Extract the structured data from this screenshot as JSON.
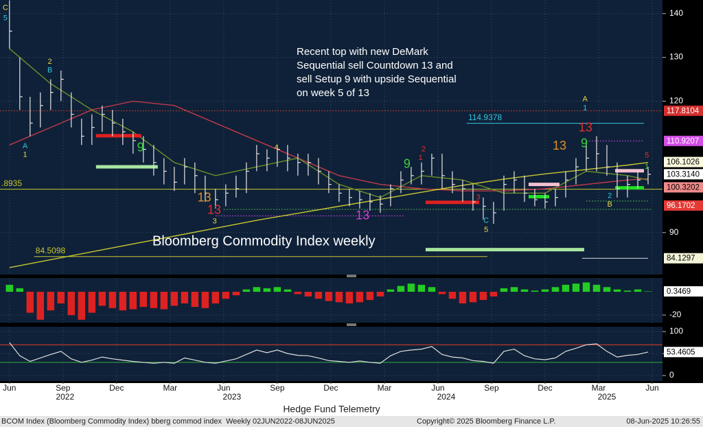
{
  "chart_data": [
    {
      "type": "ohlc",
      "title": "Bloomberg Commodity Index weekly",
      "note": [
        "Recent top with new DeMark",
        "Sequential sell Countdown 13 and",
        "sell Setup 9 with upside Sequential",
        "on week 5 of 13"
      ],
      "xlim": [
        -2.3,
        158.5
      ],
      "ylim": [
        80.4,
        143.1
      ],
      "yticks": [
        90,
        120,
        130,
        140
      ],
      "grid": true,
      "x": [
        0,
        2.5,
        5,
        7.5,
        10,
        12.5,
        15,
        17.5,
        20,
        22.5,
        25,
        27.5,
        30,
        32.5,
        35,
        37.5,
        40,
        42.5,
        45,
        47.5,
        50,
        52.5,
        55,
        57.5,
        60,
        62.5,
        65,
        67.5,
        70,
        72.5,
        75,
        77.5,
        80,
        82.5,
        85,
        87.5,
        90,
        92.5,
        95,
        97.5,
        100,
        102.5,
        105,
        107.5,
        110,
        112.5,
        115,
        117.5,
        120,
        122.5,
        125,
        127.5,
        130,
        132.5,
        135,
        137.5,
        140,
        142.5,
        145,
        147.5,
        150,
        152.5,
        155
      ],
      "ohlc": {
        "color": "#e6e6e6",
        "high": [
          143,
          130,
          121,
          122,
          125,
          127,
          122,
          116,
          117,
          119,
          118,
          116,
          113,
          112,
          110,
          107,
          105,
          107,
          106,
          103,
          100,
          101,
          103,
          106,
          110,
          109,
          110,
          110,
          108,
          108,
          107,
          104,
          101,
          100,
          99.5,
          99,
          98.5,
          101,
          104,
          105,
          106,
          108,
          108,
          104,
          102,
          101,
          98,
          97,
          103,
          104,
          103,
          100,
          99,
          100,
          104,
          107,
          111,
          112,
          110,
          106,
          103,
          104,
          105
        ],
        "low": [
          132,
          118,
          112,
          114,
          118,
          120,
          114,
          110,
          110,
          113,
          112,
          110,
          108,
          106,
          103,
          101,
          99.5,
          101,
          99,
          97,
          95.5,
          96,
          98,
          99,
          104,
          104,
          105,
          104,
          103,
          103,
          101,
          99,
          97,
          96,
          95.5,
          95,
          94.5,
          96,
          99,
          101,
          101,
          103,
          100,
          99,
          97,
          95,
          93,
          92,
          95,
          99,
          97,
          96,
          95.5,
          96,
          98,
          101,
          104,
          104,
          103,
          98,
          98,
          100,
          101
        ],
        "close": [
          136,
          121,
          115,
          119,
          122,
          125,
          117,
          112,
          114,
          117,
          115,
          113,
          111,
          109,
          106,
          104,
          101.5,
          105,
          103,
          99,
          97.5,
          99,
          100,
          104,
          108,
          107,
          109,
          107,
          106,
          106,
          104,
          101,
          99,
          98,
          97.5,
          97,
          96.5,
          100,
          102,
          103,
          104,
          107,
          103,
          101,
          100,
          97,
          96,
          94.5,
          101,
          102,
          99,
          97.5,
          97,
          98,
          102,
          105,
          107,
          108,
          105,
          100,
          101,
          102,
          103.3
        ]
      },
      "lines": [
        {
          "color": "#c0394a",
          "x": [
            0,
            10,
            20,
            30,
            40,
            50,
            60,
            70,
            80,
            90,
            100,
            110,
            120,
            130,
            140,
            150,
            155
          ],
          "values": [
            110,
            114,
            118,
            120,
            119,
            115,
            111,
            107,
            103,
            101,
            100,
            99.5,
            99.5,
            100,
            101,
            102,
            102.3
          ]
        },
        {
          "color": "#6b8e2a",
          "x": [
            0,
            10,
            20,
            30,
            40,
            50,
            60,
            70,
            80,
            90,
            100,
            110,
            120,
            130,
            140,
            150,
            155
          ],
          "values": [
            132,
            124,
            118,
            113,
            106,
            103,
            105,
            107,
            101,
            98,
            103,
            102,
            99,
            99,
            104,
            103,
            102
          ]
        },
        {
          "color": "#c8c832",
          "x": [
            0,
            10,
            20,
            30,
            40,
            50,
            60,
            70,
            80,
            90,
            100,
            110,
            120,
            130,
            140,
            150,
            155
          ],
          "values": [
            82,
            83.8,
            85.6,
            87.4,
            89.2,
            91,
            92.8,
            94.4,
            96,
            97.6,
            99.2,
            100.8,
            102.2,
            103.4,
            104.4,
            105.4,
            106
          ]
        }
      ],
      "levels": [
        {
          "value": 117.8104,
          "from": -2.3,
          "to": 158.5,
          "color": "#c0392b",
          "dash": true
        },
        {
          "value": 114.9378,
          "label": "114.9378",
          "from": 111,
          "to": 154,
          "color": "#33c6e0",
          "dash": false
        },
        {
          "value": 110.9207,
          "from": 140,
          "to": 154,
          "color": "#c040e0",
          "dash": true
        },
        {
          "value": 99.8935,
          "label": ".8935",
          "from": -2.3,
          "to": 158.5,
          "color": "#c8c832",
          "dash": false
        },
        {
          "value": 84.5098,
          "label": "84.5098",
          "from": 6,
          "to": 116,
          "color": "#c8c832",
          "dash": false
        },
        {
          "value": 84.1297,
          "from": 139,
          "to": 155,
          "color": "#dddddd",
          "dash": false
        },
        {
          "value": 95.3,
          "from": 52,
          "to": 156,
          "color": "#4caf50",
          "dash": true
        },
        {
          "value": 93.8,
          "from": 50,
          "to": 96,
          "color": "#c040e0",
          "dash": true
        },
        {
          "value": 97.2,
          "from": 140,
          "to": 155,
          "color": "#4caf50",
          "dash": true
        }
      ],
      "bands": [
        {
          "value": 112.1,
          "from": 21,
          "to": 32,
          "color": "#e02020"
        },
        {
          "value": 105,
          "from": 21,
          "to": 36,
          "color": "#a8e6a0"
        },
        {
          "value": 96.9,
          "from": 101,
          "to": 114,
          "color": "#e02020"
        },
        {
          "value": 86.1,
          "from": 101,
          "to": 139.5,
          "color": "#a8e6a0"
        },
        {
          "value": 101,
          "from": 126,
          "to": 133.5,
          "color": "#f4c0d0"
        },
        {
          "value": 98.2,
          "from": 126,
          "to": 131,
          "color": "#22dd22"
        },
        {
          "value": 104.1,
          "from": 147,
          "to": 154,
          "color": "#f4c0d0"
        },
        {
          "value": 100.2,
          "from": 147,
          "to": 154,
          "color": "#22dd22"
        }
      ],
      "annotations": [
        {
          "text": "C",
          "x": -1,
          "y": 141.3,
          "color": "#e8d84a",
          "large": false
        },
        {
          "text": "5",
          "x": -1,
          "y": 138.9,
          "color": "#33c6e0",
          "large": false
        },
        {
          "text": "2",
          "x": 9.8,
          "y": 129,
          "color": "#e8d84a",
          "large": false
        },
        {
          "text": "B",
          "x": 9.8,
          "y": 127,
          "color": "#33c6e0",
          "large": false
        },
        {
          "text": "A",
          "x": 3.8,
          "y": 109.7,
          "color": "#33c6e0",
          "large": false
        },
        {
          "text": "1",
          "x": 3.8,
          "y": 107.7,
          "color": "#e8d84a",
          "large": false
        },
        {
          "text": "4",
          "x": 64.8,
          "y": 109.4,
          "color": "#e8d84a",
          "large": false
        },
        {
          "text": "3",
          "x": 49.8,
          "y": 92.5,
          "color": "#e8d84a",
          "large": false
        },
        {
          "text": "C",
          "x": 115.7,
          "y": 92.7,
          "color": "#33c6e0",
          "large": false
        },
        {
          "text": "5",
          "x": 115.7,
          "y": 90.6,
          "color": "#e8d84a",
          "large": false
        },
        {
          "text": "A",
          "x": 139.7,
          "y": 120.4,
          "color": "#e8d84a",
          "large": false
        },
        {
          "text": "1",
          "x": 139.7,
          "y": 118.4,
          "color": "#33c6e0",
          "large": false
        },
        {
          "text": "2",
          "x": 145.7,
          "y": 98.3,
          "color": "#33c6e0",
          "large": false
        },
        {
          "text": "B",
          "x": 145.7,
          "y": 96.4,
          "color": "#e8d84a",
          "large": false
        },
        {
          "text": "13",
          "x": 47.3,
          "y": 97.8,
          "color": "#e0902a",
          "large": true
        },
        {
          "text": "13",
          "x": 49.7,
          "y": 95,
          "color": "#e03030",
          "large": true
        },
        {
          "text": "13",
          "x": 85.7,
          "y": 93.8,
          "color": "#d040d0",
          "large": true
        },
        {
          "text": "13",
          "x": 133.5,
          "y": 109.7,
          "color": "#e0902a",
          "large": true
        },
        {
          "text": "13",
          "x": 139.8,
          "y": 113.8,
          "color": "#e03030",
          "large": true
        },
        {
          "text": "9",
          "x": 139.5,
          "y": 110.2,
          "color": "#3ccf3c",
          "large": true
        },
        {
          "text": "9",
          "x": 96.5,
          "y": 105.5,
          "color": "#3ccf3c",
          "large": true
        },
        {
          "text": "9",
          "x": 31.8,
          "y": 109.3,
          "color": "#3ccf3c",
          "large": true
        },
        {
          "text": "5",
          "x": 154.7,
          "y": 107.6,
          "color": "#e03030",
          "large": false
        },
        {
          "text": "1",
          "x": 154.7,
          "y": 105,
          "color": "#3ccf3c",
          "large": false
        },
        {
          "text": "2",
          "x": 100.5,
          "y": 109,
          "color": "#e03030",
          "large": false
        },
        {
          "text": "1",
          "x": 99.8,
          "y": 107,
          "color": "#e03030",
          "large": false
        },
        {
          "text": "3",
          "x": 113.8,
          "y": 98,
          "color": "#e03030",
          "large": false
        }
      ],
      "price_boxes": [
        {
          "value": 117.8104,
          "color": "#d32f2f",
          "text_color": "#ffffff"
        },
        {
          "value": 110.9207,
          "color": "#d44ee8",
          "text_color": "#ffffff"
        },
        {
          "value": 106.1026,
          "color": "#fffbe0",
          "text_color": "#000000"
        },
        {
          "value": 103.314,
          "label": "103.3140",
          "color": "#ffffff",
          "text_color": "#000000"
        },
        {
          "value": 100.3202,
          "color": "#f08a8a",
          "text_color": "#000000"
        },
        {
          "value": 96.1702,
          "color": "#e53935",
          "text_color": "#ffffff"
        },
        {
          "value": 84.1297,
          "color": "#f4f4d8",
          "text_color": "#000000"
        }
      ]
    },
    {
      "type": "bar",
      "xlim": [
        -2.3,
        158.5
      ],
      "ylim": [
        -26.5,
        11.8
      ],
      "yticks": [
        -20
      ],
      "grid": true,
      "pos_color": "#22cc22",
      "neg_color": "#dd2222",
      "x": [
        0,
        2.5,
        5,
        7.5,
        10,
        12.5,
        15,
        17.5,
        20,
        22.5,
        25,
        27.5,
        30,
        32.5,
        35,
        37.5,
        40,
        42.5,
        45,
        47.5,
        50,
        52.5,
        55,
        57.5,
        60,
        62.5,
        65,
        67.5,
        70,
        72.5,
        75,
        77.5,
        80,
        82.5,
        85,
        87.5,
        90,
        92.5,
        95,
        97.5,
        100,
        102.5,
        105,
        107.5,
        110,
        112.5,
        115,
        117.5,
        120,
        122.5,
        125,
        127.5,
        130,
        132.5,
        135,
        137.5,
        140,
        142.5,
        145,
        147.5,
        150,
        152.5,
        155
      ],
      "values": [
        6,
        3,
        -18,
        -24,
        -16,
        -10,
        -20,
        -24,
        -18,
        -12,
        -14,
        -16,
        -15,
        -13,
        -14,
        -15,
        -12,
        -10,
        -13,
        -14,
        -10,
        -6,
        -3,
        2,
        4,
        3,
        4,
        2,
        -2,
        -4,
        -6,
        -8,
        -9,
        -10,
        -9,
        -7,
        -4,
        2,
        5,
        7,
        6,
        4,
        -2,
        -6,
        -10,
        -9,
        -7,
        -4,
        3,
        4,
        2,
        1,
        2,
        4,
        6,
        7,
        8,
        6,
        4,
        2,
        1,
        2,
        0.3469
      ]
    },
    {
      "type": "line",
      "xlim": [
        -2.3,
        158.5
      ],
      "ylim": [
        -12.5,
        111
      ],
      "yticks": [
        0,
        50,
        100
      ],
      "grid": true,
      "color": "#e0e0e0",
      "ref_lines": [
        {
          "value": 70,
          "color": "#c0392b"
        },
        {
          "value": 30,
          "color": "#2e9e3e"
        }
      ],
      "xticks": [
        {
          "value": 0,
          "label": "Jun"
        },
        {
          "value": 13,
          "label": "Sep"
        },
        {
          "value": 26,
          "label": "Dec"
        },
        {
          "value": 39,
          "label": "Mar"
        },
        {
          "value": 52,
          "label": "Jun"
        },
        {
          "value": 65,
          "label": "Sep"
        },
        {
          "value": 78,
          "label": "Dec"
        },
        {
          "value": 91,
          "label": "Mar"
        },
        {
          "value": 104,
          "label": "Jun"
        },
        {
          "value": 117,
          "label": "Sep"
        },
        {
          "value": 130,
          "label": "Dec"
        },
        {
          "value": 143,
          "label": "Mar"
        },
        {
          "value": 156,
          "label": "Jun"
        }
      ],
      "years": [
        {
          "value": 13.5,
          "label": "2022"
        },
        {
          "value": 54,
          "label": "2023"
        },
        {
          "value": 106,
          "label": "2024"
        },
        {
          "value": 145,
          "label": "2025"
        }
      ],
      "x": [
        0,
        2.5,
        5,
        7.5,
        10,
        12.5,
        15,
        17.5,
        20,
        22.5,
        25,
        27.5,
        30,
        32.5,
        35,
        37.5,
        40,
        42.5,
        45,
        47.5,
        50,
        52.5,
        55,
        57.5,
        60,
        62.5,
        65,
        67.5,
        70,
        72.5,
        75,
        77.5,
        80,
        82.5,
        85,
        87.5,
        90,
        92.5,
        95,
        97.5,
        100,
        102.5,
        105,
        107.5,
        110,
        112.5,
        115,
        117.5,
        120,
        122.5,
        125,
        127.5,
        130,
        132.5,
        135,
        137.5,
        140,
        142.5,
        145,
        147.5,
        150,
        152.5,
        155
      ],
      "values": [
        75,
        45,
        32,
        40,
        48,
        55,
        38,
        30,
        35,
        42,
        38,
        35,
        32,
        30,
        28,
        30,
        28,
        40,
        35,
        30,
        28,
        33,
        38,
        48,
        58,
        52,
        58,
        50,
        46,
        45,
        40,
        34,
        32,
        30,
        33,
        30,
        28,
        45,
        55,
        58,
        60,
        66,
        48,
        42,
        40,
        34,
        32,
        28,
        55,
        60,
        45,
        38,
        36,
        40,
        55,
        62,
        70,
        72,
        55,
        42,
        46,
        48,
        53.4605
      ]
    }
  ],
  "footer": {
    "caption": "Hedge Fund Telemetry",
    "source": "BCOM Index (Bloomberg Commodity Index) bberg commod index  Weekly 02JUN2022-08JUN2025",
    "copyright": "Copyright© 2025 Bloomberg Finance L.P.",
    "timestamp": "08-Jun-2025 10:26:55"
  }
}
